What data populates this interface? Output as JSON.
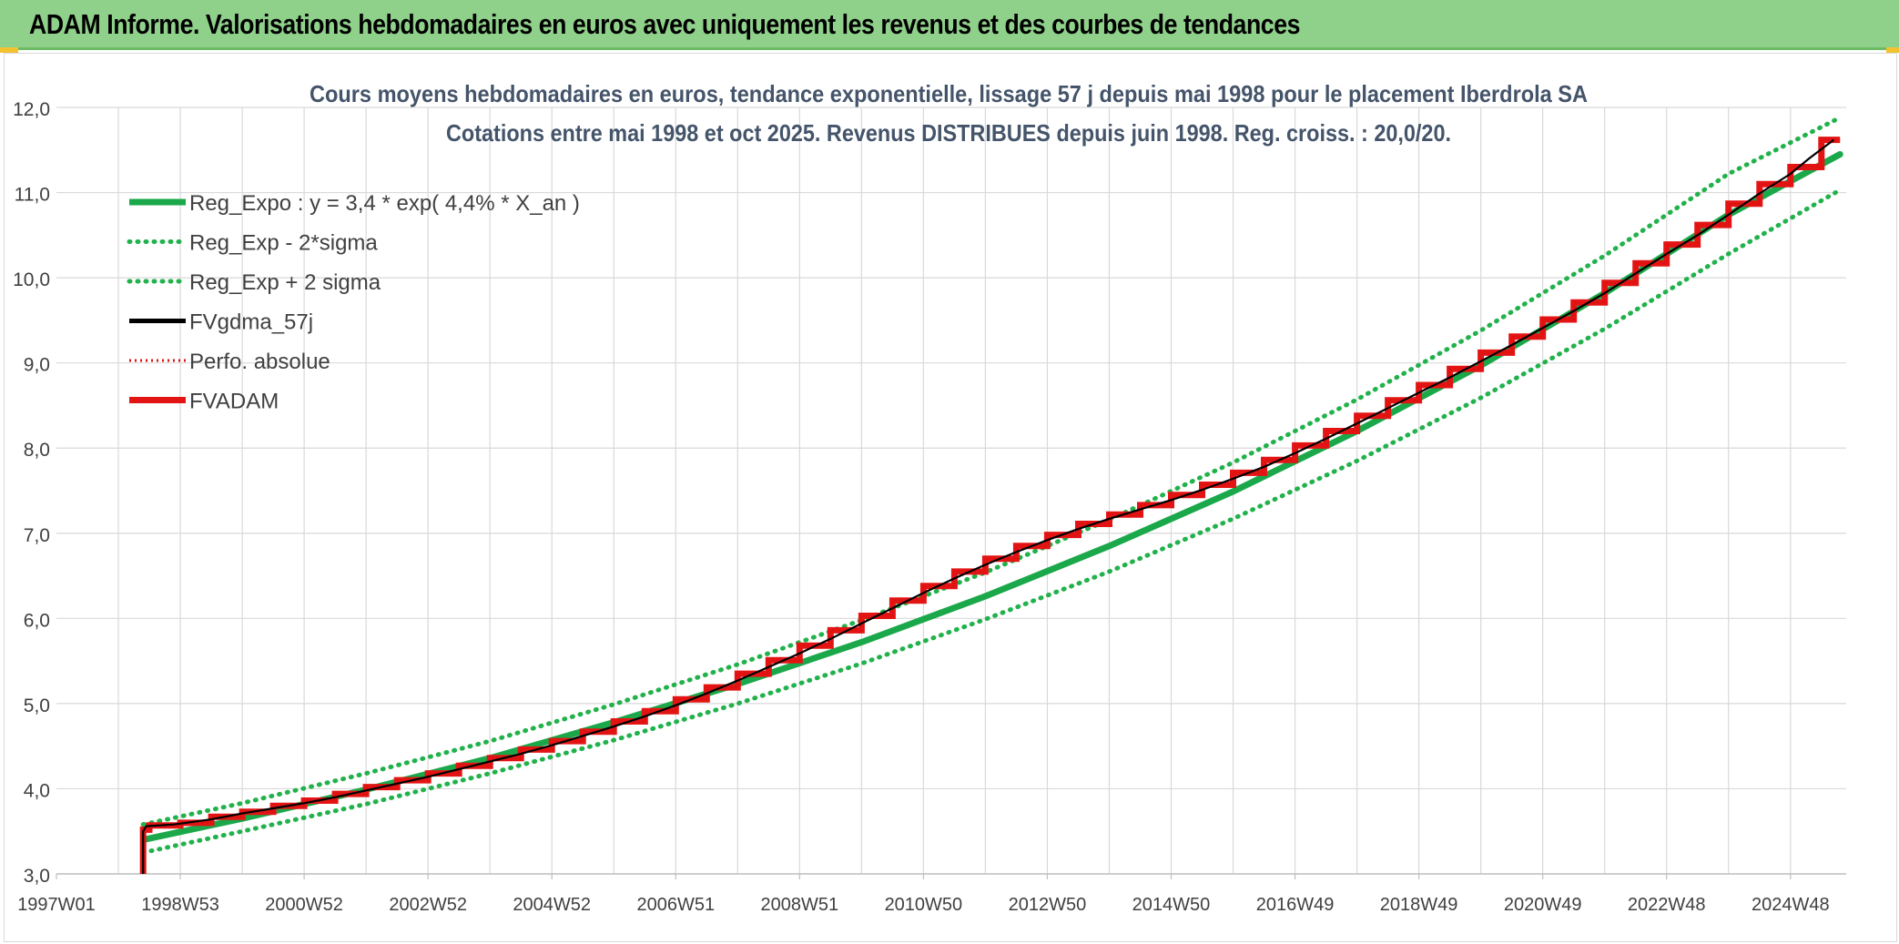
{
  "header": {
    "title": "ADAM Informe. Valorisations hebdomadaires en euros avec uniquement les revenus et des courbes de tendances"
  },
  "colors": {
    "banner": "#8fd18a",
    "reg_expo": "#1aa84a",
    "sigma": "#22b24c",
    "fvgdma": "#000000",
    "perfo": "#e01010",
    "fvadam": "#e31414",
    "grid": "#d9d9d9"
  },
  "chart_data": {
    "type": "line",
    "title_line1": "Cours moyens hebdomadaires en euros, tendance exponentielle, lissage 57 j depuis mai 1998 pour le placement Iberdrola SA",
    "title_line2": "Cotations entre mai 1998 et oct 2025. Revenus DISTRIBUES depuis juin 1998. Reg. croiss. : 20,0/20.",
    "ylim": [
      3.0,
      12.0
    ],
    "yticks": [
      "3,0",
      "4,0",
      "5,0",
      "6,0",
      "7,0",
      "8,0",
      "9,0",
      "10,0",
      "11,0",
      "12,0"
    ],
    "xlim": [
      1997.0,
      2025.9
    ],
    "xticks": [
      {
        "label": "1997W01",
        "year": 1997.0
      },
      {
        "label": "1998W53",
        "year": 1999.0
      },
      {
        "label": "2000W52",
        "year": 2001.0
      },
      {
        "label": "2002W52",
        "year": 2003.0
      },
      {
        "label": "2004W52",
        "year": 2005.0
      },
      {
        "label": "2006W51",
        "year": 2007.0
      },
      {
        "label": "2008W51",
        "year": 2009.0
      },
      {
        "label": "2010W50",
        "year": 2011.0
      },
      {
        "label": "2012W50",
        "year": 2013.0
      },
      {
        "label": "2014W50",
        "year": 2015.0
      },
      {
        "label": "2016W49",
        "year": 2017.0
      },
      {
        "label": "2018W49",
        "year": 2019.0
      },
      {
        "label": "2020W49",
        "year": 2021.0
      },
      {
        "label": "2022W48",
        "year": 2023.0
      },
      {
        "label": "2024W48",
        "year": 2025.0
      }
    ],
    "grid": true,
    "legend_position": "top-left",
    "legend": [
      {
        "key": "reg",
        "label": "Reg_Expo : y = 3,4 * exp( 4,4% *  X_an )",
        "style": "solid-thick",
        "color": "#1aa84a"
      },
      {
        "key": "lo",
        "label": "Reg_Exp - 2*sigma",
        "style": "dotted",
        "color": "#22b24c"
      },
      {
        "key": "hi",
        "label": "Reg_Exp + 2 sigma",
        "style": "dotted",
        "color": "#22b24c"
      },
      {
        "key": "fvg",
        "label": "FVgdma_57j",
        "style": "solid",
        "color": "#000000"
      },
      {
        "key": "perf",
        "label": "Perfo. absolue",
        "style": "dotted",
        "color": "#e01010"
      },
      {
        "key": "fva",
        "label": "FVADAM",
        "style": "solid-thick",
        "color": "#e31414"
      }
    ],
    "series": [
      {
        "name": "Reg_Expo : y = 3,4 * exp( 4,4% *  X_an )",
        "x": [
          1998.4,
          2000.0,
          2002.0,
          2004.0,
          2006.0,
          2008.0,
          2010.0,
          2012.0,
          2014.0,
          2016.0,
          2018.0,
          2020.0,
          2022.0,
          2024.0,
          2025.8
        ],
        "values": [
          3.4,
          3.65,
          3.99,
          4.36,
          4.78,
          5.23,
          5.72,
          6.26,
          6.85,
          7.49,
          8.2,
          8.97,
          9.82,
          10.74,
          11.45
        ]
      },
      {
        "name": "Reg_Exp - 2*sigma",
        "x": [
          1998.4,
          2000.0,
          2002.0,
          2004.0,
          2006.0,
          2008.0,
          2010.0,
          2012.0,
          2014.0,
          2016.0,
          2018.0,
          2020.0,
          2022.0,
          2024.0,
          2025.8
        ],
        "values": [
          3.25,
          3.5,
          3.82,
          4.18,
          4.57,
          5.0,
          5.47,
          5.99,
          6.55,
          7.17,
          7.85,
          8.59,
          9.4,
          10.28,
          11.03
        ]
      },
      {
        "name": "Reg_Exp + 2 sigma",
        "x": [
          1998.4,
          2000.0,
          2002.0,
          2004.0,
          2006.0,
          2008.0,
          2010.0,
          2012.0,
          2014.0,
          2016.0,
          2018.0,
          2020.0,
          2022.0,
          2024.0,
          2025.8
        ],
        "values": [
          3.58,
          3.83,
          4.18,
          4.56,
          4.99,
          5.46,
          5.98,
          6.54,
          7.16,
          7.83,
          8.57,
          9.38,
          10.26,
          11.22,
          11.88
        ]
      },
      {
        "name": "FVgdma_57j",
        "x": [
          1998.4,
          1998.4,
          1998.45,
          1998.9,
          1999.5,
          2000.0,
          2000.5,
          2001.0,
          2001.5,
          2002.0,
          2002.5,
          2003.0,
          2003.5,
          2004.0,
          2004.5,
          2005.0,
          2005.5,
          2006.0,
          2006.5,
          2007.0,
          2007.5,
          2008.0,
          2008.5,
          2009.0,
          2009.5,
          2010.0,
          2010.5,
          2011.0,
          2011.5,
          2012.0,
          2012.5,
          2013.0,
          2013.5,
          2014.0,
          2014.5,
          2015.0,
          2015.5,
          2016.0,
          2016.5,
          2017.0,
          2017.5,
          2018.0,
          2018.5,
          2019.0,
          2019.5,
          2020.0,
          2020.5,
          2021.0,
          2021.5,
          2022.0,
          2022.5,
          2023.0,
          2023.5,
          2024.0,
          2024.5,
          2025.0,
          2025.3,
          2025.7
        ],
        "values": [
          3.0,
          3.5,
          3.56,
          3.58,
          3.64,
          3.71,
          3.77,
          3.83,
          3.9,
          3.98,
          4.06,
          4.14,
          4.23,
          4.32,
          4.41,
          4.51,
          4.62,
          4.73,
          4.85,
          4.98,
          5.12,
          5.27,
          5.43,
          5.59,
          5.76,
          5.94,
          6.12,
          6.3,
          6.47,
          6.63,
          6.78,
          6.92,
          7.05,
          7.17,
          7.28,
          7.39,
          7.51,
          7.64,
          7.78,
          7.94,
          8.11,
          8.29,
          8.47,
          8.65,
          8.83,
          9.02,
          9.21,
          9.41,
          9.61,
          9.82,
          10.05,
          10.28,
          10.5,
          10.74,
          10.99,
          11.22,
          11.4,
          11.62
        ]
      },
      {
        "name": "FVADAM",
        "x": [
          1998.4,
          1998.4,
          1998.5,
          1998.5,
          1999.0,
          1999.0,
          1999.5,
          1999.5,
          2000.0,
          2000.0,
          2000.5,
          2000.5,
          2001.0,
          2001.0,
          2001.5,
          2001.5,
          2002.0,
          2002.0,
          2002.5,
          2002.5,
          2003.0,
          2003.0,
          2003.5,
          2003.5,
          2004.0,
          2004.0,
          2004.5,
          2004.5,
          2005.0,
          2005.0,
          2005.5,
          2005.5,
          2006.0,
          2006.0,
          2006.5,
          2006.5,
          2007.0,
          2007.0,
          2007.5,
          2007.5,
          2008.0,
          2008.0,
          2008.5,
          2008.5,
          2009.0,
          2009.0,
          2009.5,
          2009.5,
          2010.0,
          2010.0,
          2010.5,
          2010.5,
          2011.0,
          2011.0,
          2011.5,
          2011.5,
          2012.0,
          2012.0,
          2012.5,
          2012.5,
          2013.0,
          2013.0,
          2013.5,
          2013.5,
          2014.0,
          2014.0,
          2014.5,
          2014.5,
          2015.0,
          2015.0,
          2015.5,
          2015.5,
          2016.0,
          2016.0,
          2016.5,
          2016.5,
          2017.0,
          2017.0,
          2017.5,
          2017.5,
          2018.0,
          2018.0,
          2018.5,
          2018.5,
          2019.0,
          2019.0,
          2019.5,
          2019.5,
          2020.0,
          2020.0,
          2020.5,
          2020.5,
          2021.0,
          2021.0,
          2021.5,
          2021.5,
          2022.0,
          2022.0,
          2022.5,
          2022.5,
          2023.0,
          2023.0,
          2023.5,
          2023.5,
          2024.0,
          2024.0,
          2024.5,
          2024.5,
          2025.0,
          2025.0,
          2025.5,
          2025.5,
          2025.8
        ],
        "values": [
          3.0,
          3.52,
          3.52,
          3.57,
          3.57,
          3.6,
          3.6,
          3.67,
          3.67,
          3.73,
          3.73,
          3.8,
          3.8,
          3.86,
          3.86,
          3.94,
          3.94,
          4.02,
          4.02,
          4.1,
          4.1,
          4.18,
          4.18,
          4.27,
          4.27,
          4.36,
          4.36,
          4.46,
          4.46,
          4.56,
          4.56,
          4.67,
          4.67,
          4.79,
          4.79,
          4.91,
          4.91,
          5.05,
          5.05,
          5.19,
          5.19,
          5.35,
          5.35,
          5.51,
          5.51,
          5.68,
          5.68,
          5.86,
          5.86,
          6.03,
          6.03,
          6.21,
          6.21,
          6.38,
          6.38,
          6.55,
          6.55,
          6.7,
          6.7,
          6.85,
          6.85,
          6.98,
          6.98,
          7.11,
          7.11,
          7.22,
          7.22,
          7.33,
          7.33,
          7.45,
          7.45,
          7.57,
          7.57,
          7.71,
          7.71,
          7.86,
          7.86,
          8.03,
          8.03,
          8.2,
          8.2,
          8.38,
          8.38,
          8.56,
          8.56,
          8.74,
          8.74,
          8.93,
          8.93,
          9.12,
          9.12,
          9.31,
          9.31,
          9.51,
          9.51,
          9.71,
          9.71,
          9.94,
          9.94,
          10.17,
          10.17,
          10.39,
          10.39,
          10.62,
          10.62,
          10.87,
          10.87,
          11.1,
          11.1,
          11.3,
          11.3,
          11.62,
          11.62
        ]
      }
    ]
  }
}
